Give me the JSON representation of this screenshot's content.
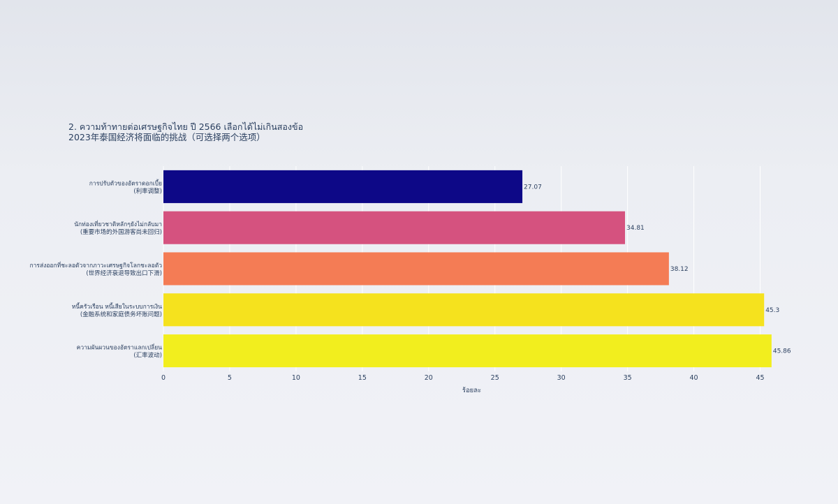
{
  "chart_data": {
    "type": "bar",
    "orientation": "horizontal",
    "title_line1": "2. ความท้าทายต่อเศรษฐกิจไทย ปี 2566 เลือกได้ไม่เกินสองข้อ",
    "title_line2": "2023年泰国经济将面临的挑战（可选择两个选项）",
    "xlabel": "ร้อยละ",
    "xlim": [
      0,
      46.5
    ],
    "xticks": [
      0,
      5,
      10,
      15,
      20,
      25,
      30,
      35,
      40,
      45
    ],
    "categories": [
      {
        "line1": "การปรับตัวของอัตราดอกเบี้ย",
        "line2": "(利率调整)"
      },
      {
        "line1": "นักท่องเที่ยวชาติหลักๆยังไม่กลับมา",
        "line2": "(重要市场的外国游客尚未回归)"
      },
      {
        "line1": "การส่งออกที่ชะลอตัวจากภาวะเศรษฐกิจโลกชะลอตัว",
        "line2": "(世界经济衰退导致出口下滑)"
      },
      {
        "line1": "หนี้ครัวเรือน หนี้เสียในระบบการเงิน",
        "line2": "(金融系统和家庭债务坏账问题)"
      },
      {
        "line1": "ความผันผวนของอัตราแลกเปลี่ยน",
        "line2": "(汇率波动)"
      }
    ],
    "values": [
      27.07,
      34.81,
      38.12,
      45.3,
      45.86
    ],
    "value_labels": [
      "27.07",
      "34.81",
      "38.12",
      "45.3",
      "45.86"
    ],
    "colors": [
      "#0d0887",
      "#d5527f",
      "#f47c55",
      "#f5e21e",
      "#f2ee1e"
    ],
    "grid": true
  }
}
